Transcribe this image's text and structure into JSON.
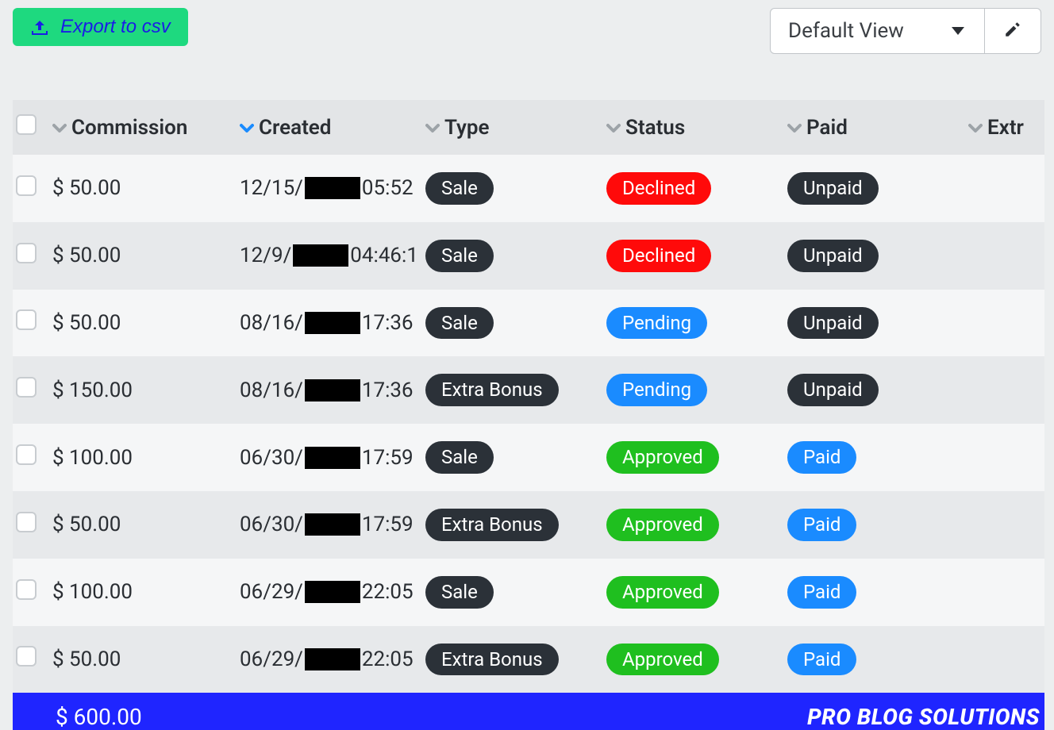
{
  "colors": {
    "page_bg": "#eceeef",
    "export_bg": "#1ed97f",
    "export_text": "#1a1de6",
    "pill_dark": "#2b3138",
    "pill_red": "#ff0a0a",
    "pill_blue": "#1a8bff",
    "pill_green": "#1fbf1f",
    "footer_bg": "#1f25ff",
    "sort_active": "#1a8bff",
    "sort_inactive": "#9da3a8",
    "header_bg": "#e3e5e7",
    "row_odd_bg": "#f5f6f7",
    "row_even_bg": "#e7e9eb"
  },
  "toolbar": {
    "export_label": "Export to csv",
    "view_selected": "Default View"
  },
  "table": {
    "sorted_column": "created",
    "columns": [
      {
        "key": "commission",
        "label": "Commission"
      },
      {
        "key": "created",
        "label": "Created"
      },
      {
        "key": "type",
        "label": "Type"
      },
      {
        "key": "status",
        "label": "Status"
      },
      {
        "key": "paid",
        "label": "Paid"
      },
      {
        "key": "extras",
        "label": "Extr"
      }
    ],
    "rows": [
      {
        "commission": "$ 50.00",
        "created_pre": "12/15/",
        "created_post": "05:52",
        "type": "Sale",
        "status": "Declined",
        "paid": "Unpaid"
      },
      {
        "commission": "$ 50.00",
        "created_pre": "12/9/",
        "created_post": "04:46:1",
        "type": "Sale",
        "status": "Declined",
        "paid": "Unpaid"
      },
      {
        "commission": "$ 50.00",
        "created_pre": "08/16/",
        "created_post": " 17:36",
        "type": "Sale",
        "status": "Pending",
        "paid": "Unpaid"
      },
      {
        "commission": "$ 150.00",
        "created_pre": "08/16/",
        "created_post": " 17:36",
        "type": "Extra Bonus",
        "status": "Pending",
        "paid": "Unpaid"
      },
      {
        "commission": "$ 100.00",
        "created_pre": "06/30/",
        "created_post": " 17:59",
        "type": "Sale",
        "status": "Approved",
        "paid": "Paid"
      },
      {
        "commission": "$ 50.00",
        "created_pre": "06/30/",
        "created_post": " 17:59",
        "type": "Extra Bonus",
        "status": "Approved",
        "paid": "Paid"
      },
      {
        "commission": "$ 100.00",
        "created_pre": "06/29/",
        "created_post": " 22:05",
        "type": "Sale",
        "status": "Approved",
        "paid": "Paid"
      },
      {
        "commission": "$ 50.00",
        "created_pre": "06/29/",
        "created_post": " 22:05",
        "type": "Extra Bonus",
        "status": "Approved",
        "paid": "Paid"
      }
    ],
    "footer": {
      "total": "$ 600.00",
      "brand": "PRO BLOG SOLUTIONS"
    }
  },
  "pill_styles": {
    "type": {
      "Sale": "pill-dark",
      "Extra Bonus": "pill-dark"
    },
    "status": {
      "Declined": "pill-red",
      "Pending": "pill-blue",
      "Approved": "pill-green"
    },
    "paid": {
      "Unpaid": "pill-dark",
      "Paid": "pill-blue"
    }
  }
}
